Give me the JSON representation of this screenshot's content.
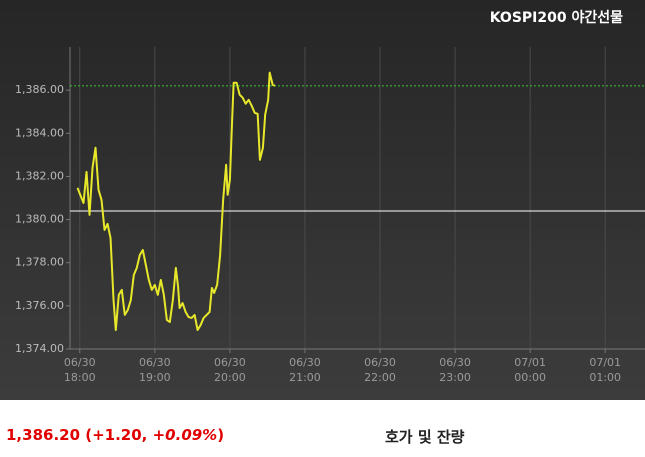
{
  "chart_data": {
    "type": "line",
    "title": "KOSPI200 야간선물",
    "x": [
      17.97,
      18.05,
      18.09,
      18.13,
      18.17,
      18.21,
      18.25,
      18.29,
      18.33,
      18.37,
      18.41,
      18.45,
      18.48,
      18.52,
      18.56,
      18.6,
      18.64,
      18.68,
      18.72,
      18.76,
      18.8,
      18.84,
      18.88,
      18.92,
      18.96,
      19,
      19.04,
      19.08,
      19.12,
      19.16,
      19.2,
      19.24,
      19.28,
      19.31,
      19.33,
      19.37,
      19.41,
      19.45,
      19.49,
      19.53,
      19.57,
      19.61,
      19.65,
      19.69,
      19.73,
      19.76,
      19.79,
      19.83,
      19.87,
      19.91,
      19.95,
      19.97,
      20,
      20.03,
      20.05,
      20.09,
      20.13,
      20.17,
      20.21,
      20.25,
      20.29,
      20.33,
      20.37,
      20.4,
      20.44,
      20.47,
      20.51,
      20.53,
      20.57,
      20.6
    ],
    "series": [
      {
        "color": "#e8e82a",
        "values": [
          1381.47,
          1380.77,
          1382.21,
          1380.22,
          1382.4,
          1383.33,
          1381.38,
          1380.91,
          1379.52,
          1379.8,
          1379.15,
          1376.27,
          1374.88,
          1376.51,
          1376.74,
          1375.58,
          1375.81,
          1376.27,
          1377.43,
          1377.76,
          1378.36,
          1378.59,
          1377.9,
          1377.2,
          1376.74,
          1376.97,
          1376.51,
          1377.2,
          1376.51,
          1375.35,
          1375.25,
          1376.27,
          1377.76,
          1376.88,
          1375.9,
          1376.13,
          1375.72,
          1375.48,
          1375.44,
          1375.58,
          1374.88,
          1375.11,
          1375.44,
          1375.58,
          1375.72,
          1376.83,
          1376.6,
          1376.97,
          1378.36,
          1380.91,
          1382.54,
          1381.15,
          1381.84,
          1384.63,
          1386.34,
          1386.34,
          1385.79,
          1385.65,
          1385.37,
          1385.55,
          1385.28,
          1384.95,
          1384.9,
          1382.77,
          1383.33,
          1384.86,
          1385.55,
          1386.81,
          1386.25,
          1386.2
        ]
      }
    ],
    "xlim": [
      17.87,
      25.53
    ],
    "ylim": [
      1374,
      1388
    ],
    "xticks": [
      {
        "value": 18,
        "label": "06/30\n18:00"
      },
      {
        "value": 19,
        "label": "06/30\n19:00"
      },
      {
        "value": 20,
        "label": "06/30\n20:00"
      },
      {
        "value": 21,
        "label": "06/30\n21:00"
      },
      {
        "value": 22,
        "label": "06/30\n22:00"
      },
      {
        "value": 23,
        "label": "06/30\n23:00"
      },
      {
        "value": 24,
        "label": "07/01\n00:00"
      },
      {
        "value": 25,
        "label": "07/01\n01:00"
      }
    ],
    "yticks": [
      {
        "value": 1374,
        "label": "1,374.00"
      },
      {
        "value": 1376,
        "label": "1,376.00"
      },
      {
        "value": 1378,
        "label": "1,378.00"
      },
      {
        "value": 1380,
        "label": "1,380.00"
      },
      {
        "value": 1382,
        "label": "1,382.00"
      },
      {
        "value": 1384,
        "label": "1,384.00"
      },
      {
        "value": 1386,
        "label": "1,386.00"
      }
    ],
    "ref_lines": [
      {
        "value": 1386.2,
        "color": "#33cc33",
        "dashed": true
      },
      {
        "value": 1380.4,
        "color": "#ffffff",
        "dashed": false
      }
    ],
    "grid": true
  },
  "quote": {
    "price": "1,386.20 ",
    "change": "(+1.20, ",
    "change_pct": "+0.09%",
    "close": ")"
  },
  "tab": "호가 및 잔량"
}
